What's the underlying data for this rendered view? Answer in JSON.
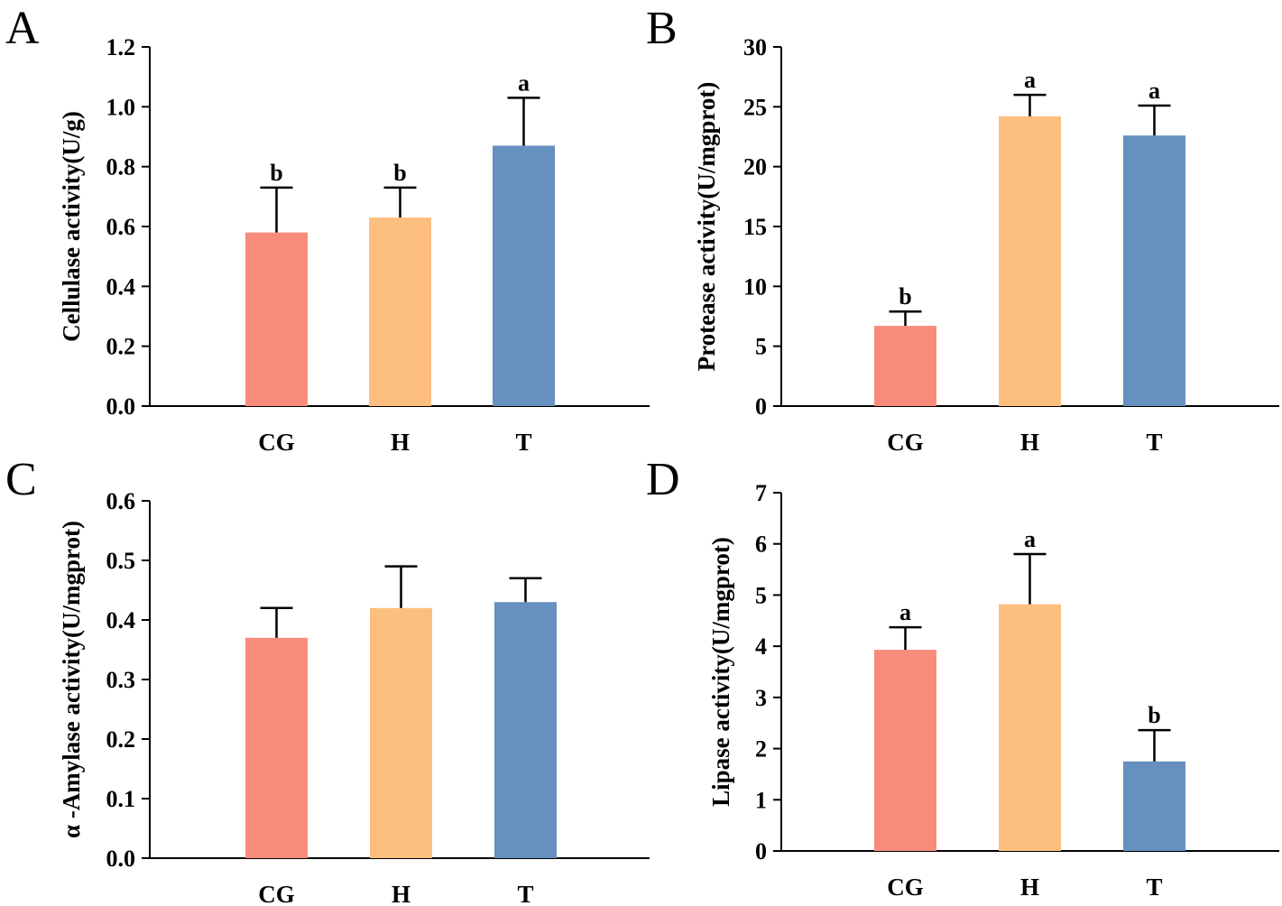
{
  "chart_data": [
    {
      "panel": "A",
      "type": "bar",
      "categories": [
        "CG",
        "H",
        "T"
      ],
      "values": [
        0.58,
        0.63,
        0.87
      ],
      "errors": [
        0.15,
        0.1,
        0.16
      ],
      "significance": [
        "b",
        "b",
        "a"
      ],
      "ylabel": "Cellulase activity(U/g)",
      "ylim": [
        0,
        1.2
      ],
      "yticks": [
        "0.0",
        "0.2",
        "0.4",
        "0.6",
        "0.8",
        "1.0",
        "1.2"
      ],
      "colors": [
        "#f98b7b",
        "#fdbf7e",
        "#6590c0"
      ]
    },
    {
      "panel": "B",
      "type": "bar",
      "categories": [
        "CG",
        "H",
        "T"
      ],
      "values": [
        6.7,
        24.2,
        22.6
      ],
      "errors": [
        1.2,
        1.8,
        2.5
      ],
      "significance": [
        "b",
        "a",
        "a"
      ],
      "ylabel": "Protease activity(U/mgprot)",
      "ylim": [
        0,
        30
      ],
      "yticks": [
        "0",
        "5",
        "10",
        "15",
        "20",
        "25",
        "30"
      ],
      "colors": [
        "#f98b7b",
        "#fdbf7e",
        "#6590c0"
      ]
    },
    {
      "panel": "C",
      "type": "bar",
      "categories": [
        "CG",
        "H",
        "T"
      ],
      "values": [
        0.37,
        0.42,
        0.43
      ],
      "errors": [
        0.05,
        0.07,
        0.04
      ],
      "significance": [
        "",
        "",
        ""
      ],
      "ylabel": "α -Amylase activity(U/mgprot)",
      "ylim": [
        0,
        0.6
      ],
      "yticks": [
        "0.0",
        "0.1",
        "0.2",
        "0.3",
        "0.4",
        "0.5",
        "0.6"
      ],
      "colors": [
        "#f98b7b",
        "#fdbf7e",
        "#6590c0"
      ]
    },
    {
      "panel": "D",
      "type": "bar",
      "categories": [
        "CG",
        "H",
        "T"
      ],
      "values": [
        3.93,
        4.82,
        1.75
      ],
      "errors": [
        0.44,
        0.98,
        0.61
      ],
      "significance": [
        "a",
        "a",
        "b"
      ],
      "ylabel": "Lipase activity(U/mgprot)",
      "ylim": [
        0,
        7
      ],
      "yticks": [
        "0",
        "1",
        "2",
        "3",
        "4",
        "5",
        "6",
        "7"
      ],
      "colors": [
        "#f98b7b",
        "#fdbf7e",
        "#6590c0"
      ]
    }
  ]
}
